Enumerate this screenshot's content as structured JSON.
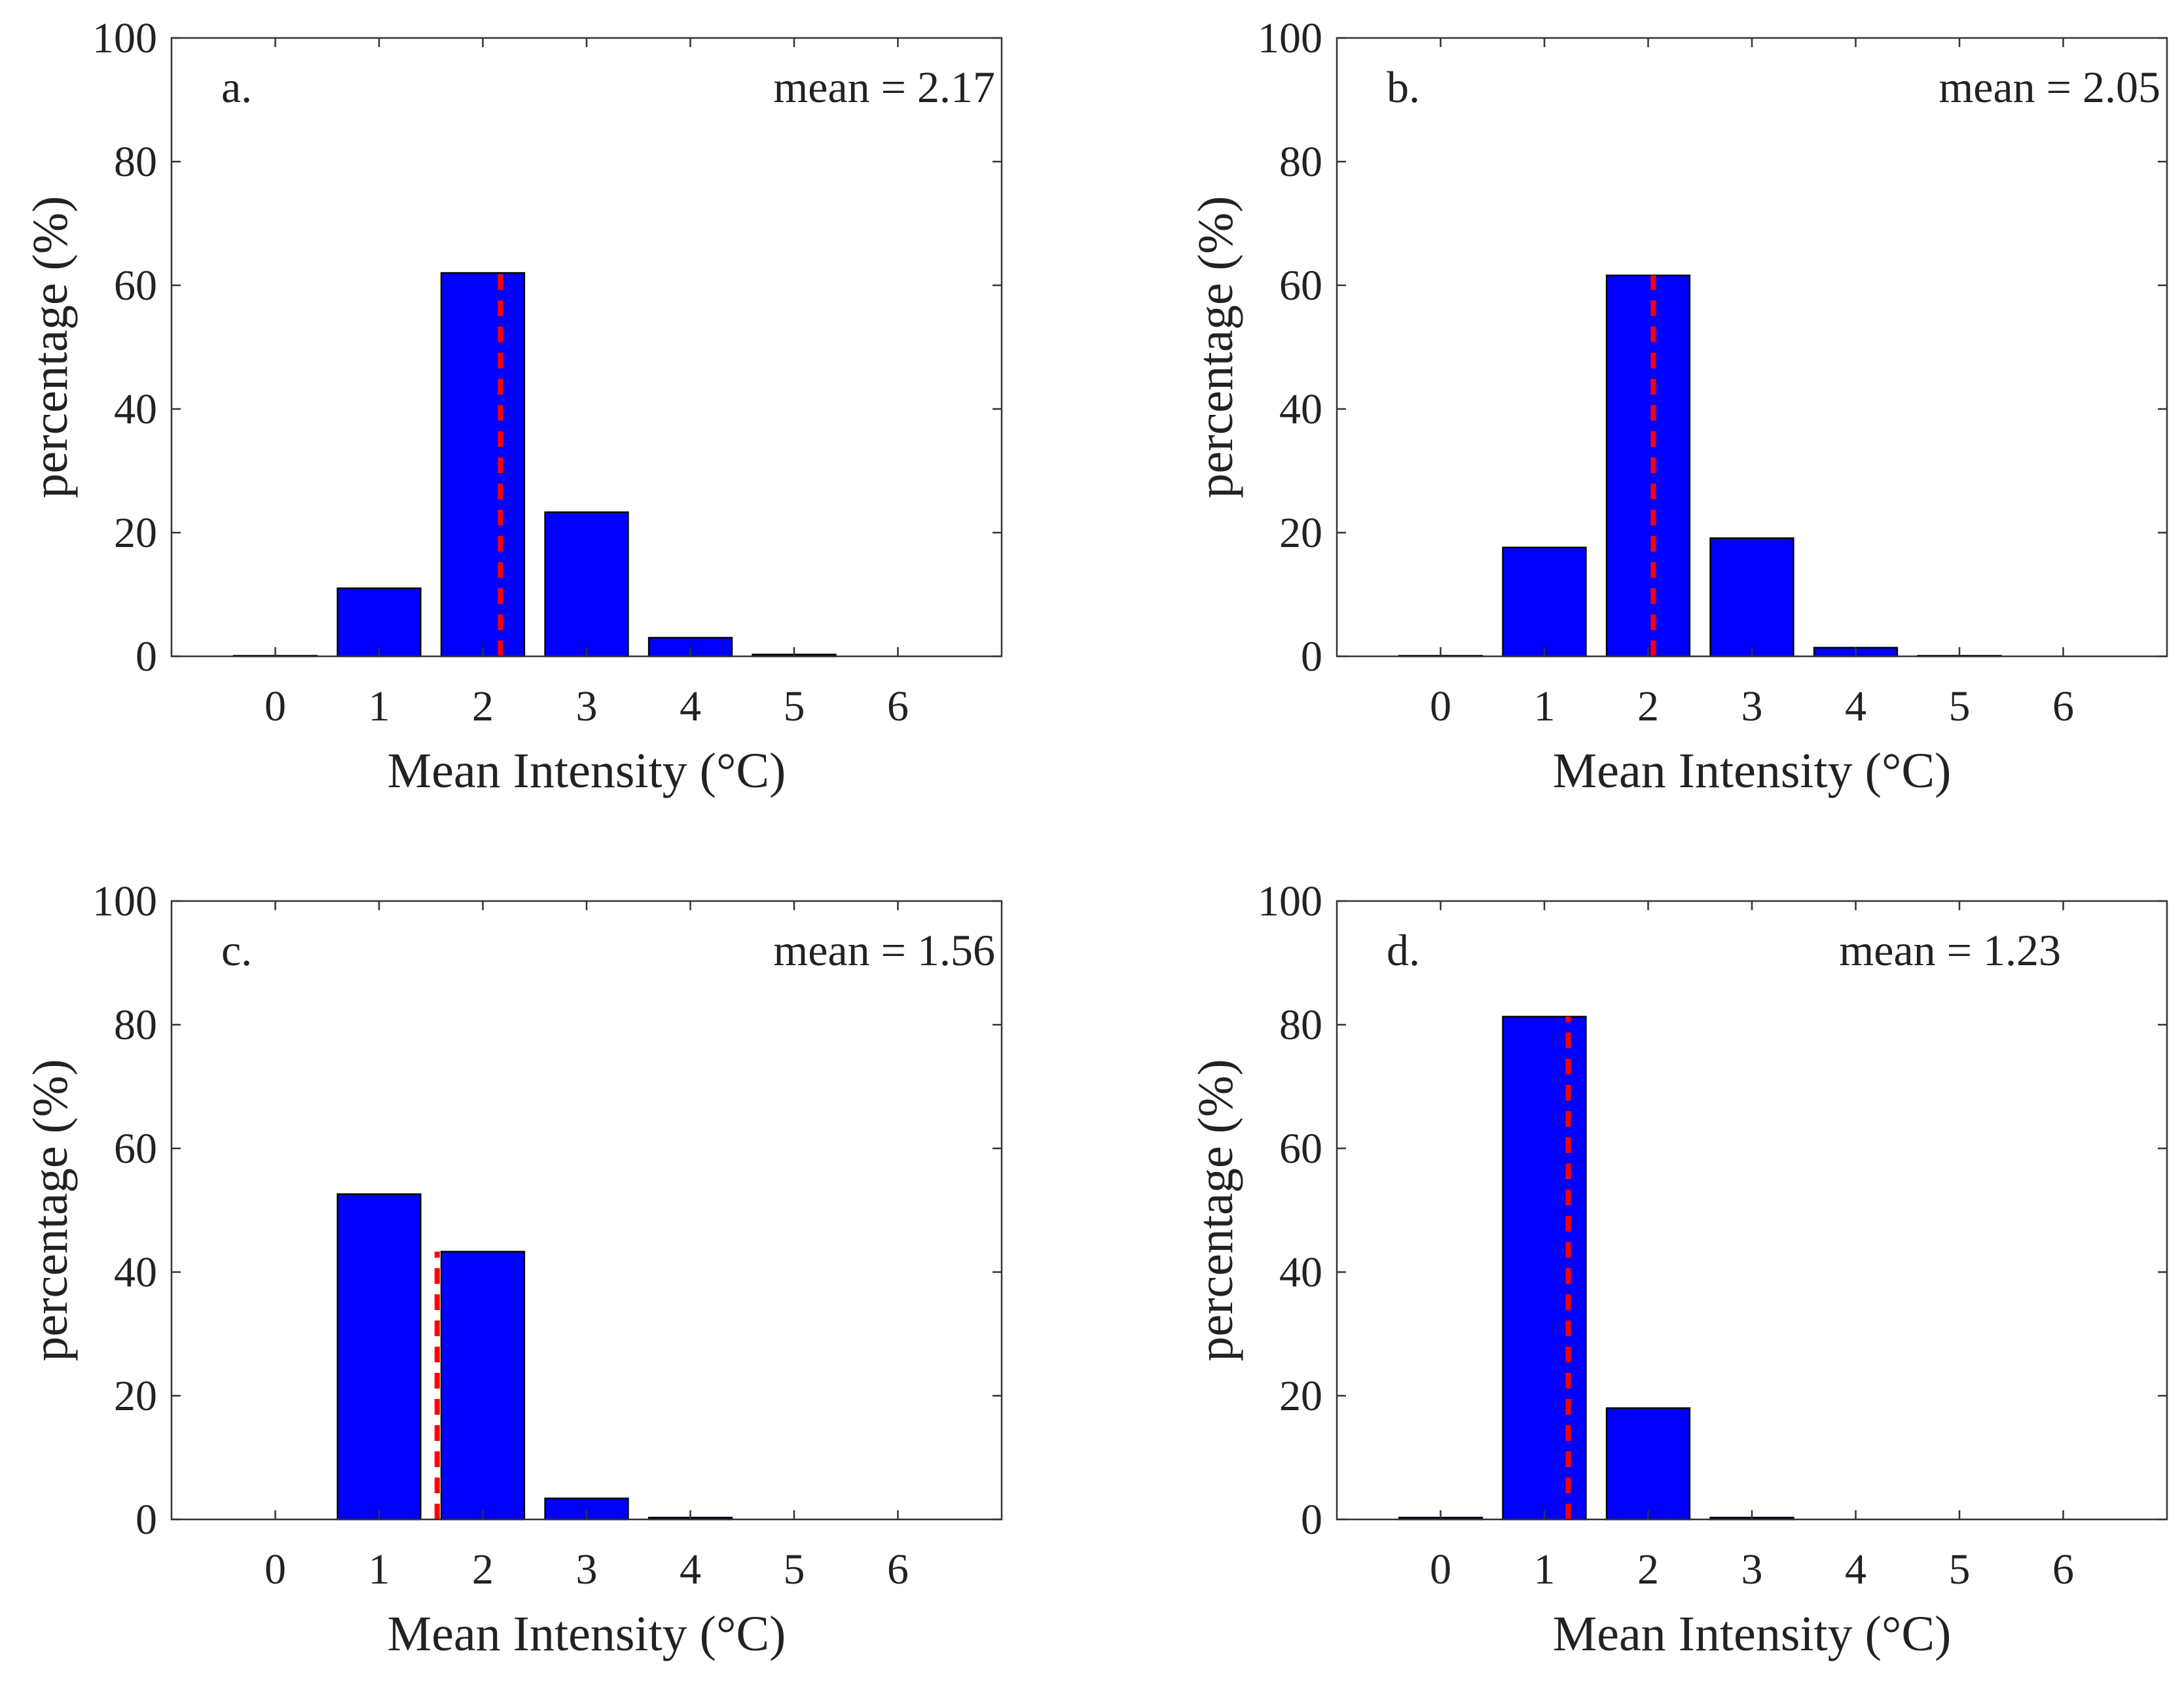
{
  "chart_data": [
    {
      "type": "bar",
      "panel_label": "a.",
      "mean_text": "mean = 2.17",
      "mean_value": 2.17,
      "categories": [
        0,
        1,
        2,
        3,
        4,
        5,
        6
      ],
      "values": [
        0.1,
        11.0,
        62.0,
        23.3,
        3.0,
        0.3,
        0.0
      ],
      "xlabel": "Mean Intensity (°C)",
      "ylabel": "percentage (%)",
      "xlim": [
        -1,
        7
      ],
      "ylim": [
        0,
        100
      ],
      "yticks": [
        0,
        20,
        40,
        60,
        80,
        100
      ],
      "xticks": [
        0,
        1,
        2,
        3,
        4,
        5,
        6
      ]
    },
    {
      "type": "bar",
      "panel_label": "b.",
      "mean_text": "mean = 2.05",
      "mean_value": 2.05,
      "categories": [
        0,
        1,
        2,
        3,
        4,
        5,
        6
      ],
      "values": [
        0.1,
        17.6,
        61.6,
        19.1,
        1.4,
        0.1,
        0.0
      ],
      "xlabel": "Mean Intensity (°C)",
      "ylabel": "percentage (%)",
      "xlim": [
        -1,
        7
      ],
      "ylim": [
        0,
        100
      ],
      "yticks": [
        0,
        20,
        40,
        60,
        80,
        100
      ],
      "xticks": [
        0,
        1,
        2,
        3,
        4,
        5,
        6
      ]
    },
    {
      "type": "bar",
      "panel_label": "c.",
      "mean_text": "mean = 1.56",
      "mean_value": 1.56,
      "categories": [
        0,
        1,
        2,
        3,
        4,
        5,
        6
      ],
      "values": [
        0.0,
        52.6,
        43.3,
        3.4,
        0.3,
        0.0,
        0.0
      ],
      "xlabel": "Mean Intensity (°C)",
      "ylabel": "percentage (%)",
      "xlim": [
        -1,
        7
      ],
      "ylim": [
        0,
        100
      ],
      "yticks": [
        0,
        20,
        40,
        60,
        80,
        100
      ],
      "xticks": [
        0,
        1,
        2,
        3,
        4,
        5,
        6
      ]
    },
    {
      "type": "bar",
      "panel_label": "d.",
      "mean_text": "mean = 1.23",
      "mean_value": 1.23,
      "categories": [
        0,
        1,
        2,
        3,
        4,
        5,
        6
      ],
      "values": [
        0.3,
        81.3,
        18.0,
        0.3,
        0.0,
        0.0,
        0.0
      ],
      "xlabel": "Mean Intensity (°C)",
      "ylabel": "percentage (%)",
      "xlim": [
        -1,
        7
      ],
      "ylim": [
        0,
        100
      ],
      "yticks": [
        0,
        20,
        40,
        60,
        80,
        100
      ],
      "xticks": [
        0,
        1,
        2,
        3,
        4,
        5,
        6
      ]
    }
  ],
  "colors": {
    "bar_fill": "#0000ff",
    "bar_edge": "#000000",
    "mean_line": "#ff0000"
  }
}
